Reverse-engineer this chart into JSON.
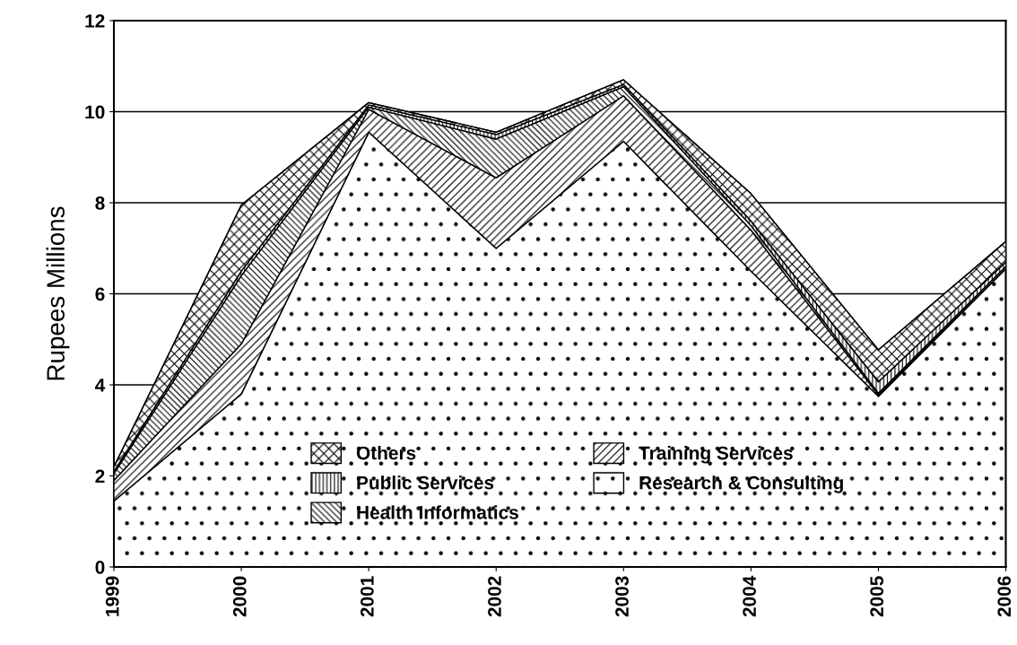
{
  "chart_data": {
    "type": "area",
    "stacked": true,
    "ylabel": "Rupees Millions",
    "categories": [
      "1999",
      "2000",
      "2001",
      "2002",
      "2003",
      "2004",
      "2005",
      "2006"
    ],
    "series": [
      {
        "name": "Research & Consulting",
        "color": "#000000",
        "values": [
          1.45,
          3.8,
          9.55,
          7.0,
          9.35,
          6.5,
          3.75,
          6.55
        ]
      },
      {
        "name": "Training Services",
        "color": "#000000",
        "values": [
          0.45,
          1.1,
          0.5,
          1.55,
          1.0,
          0.9,
          0.03,
          0.05
        ]
      },
      {
        "name": "Health Informatics",
        "color": "#000000",
        "values": [
          0.15,
          1.5,
          0.05,
          0.85,
          0.2,
          0.1,
          0.04,
          0.0
        ]
      },
      {
        "name": "Public Services",
        "color": "#000000",
        "values": [
          0.05,
          0.1,
          0.05,
          0.1,
          0.05,
          0.1,
          0.25,
          0.1
        ]
      },
      {
        "name": "Others",
        "color": "#000000",
        "values": [
          0.1,
          1.45,
          0.05,
          0.05,
          0.1,
          0.6,
          0.7,
          0.45
        ]
      }
    ],
    "ylim": [
      0,
      12
    ],
    "yticks": [
      0,
      2,
      4,
      6,
      8,
      10,
      12
    ],
    "grid": "y",
    "legend": "bottom"
  }
}
